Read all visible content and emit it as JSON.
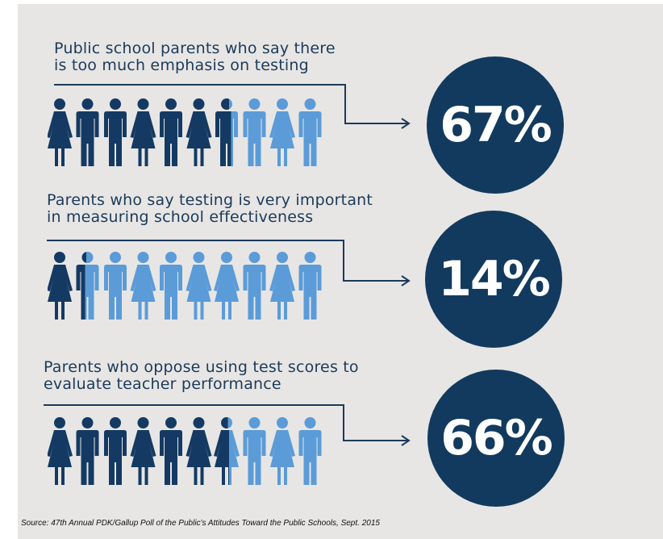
{
  "stats": [
    {
      "title_lines": [
        "Public school parents who say there",
        "is too much emphasis on testing"
      ],
      "value_text": "67%",
      "percent": 67,
      "figure_genders": [
        "f",
        "m",
        "m",
        "f",
        "m",
        "f",
        "m",
        "m",
        "f",
        "m"
      ]
    },
    {
      "title_lines": [
        "Parents who say testing is very important",
        "in measuring school effectiveness"
      ],
      "value_text": "14%",
      "percent": 14,
      "figure_genders": [
        "f",
        "m",
        "m",
        "f",
        "m",
        "f",
        "f",
        "m",
        "f",
        "m"
      ]
    },
    {
      "title_lines": [
        "Parents who oppose using test scores to",
        "evaluate teacher performance"
      ],
      "value_text": "66%",
      "percent": 66,
      "figure_genders": [
        "f",
        "m",
        "m",
        "f",
        "m",
        "f",
        "f",
        "m",
        "f",
        "m"
      ]
    }
  ],
  "source": "Source: 47th Annual PDK/Gallup Poll of the Public's Attitudes Toward the Public Schools, Sept. 2015",
  "colors": {
    "background": "#e7e6e4",
    "dark_figure": "#143a63",
    "light_figure": "#5b9bd8",
    "circle": "#123a5e",
    "line": "#1c3a5a",
    "title": "#1c3a5a"
  }
}
